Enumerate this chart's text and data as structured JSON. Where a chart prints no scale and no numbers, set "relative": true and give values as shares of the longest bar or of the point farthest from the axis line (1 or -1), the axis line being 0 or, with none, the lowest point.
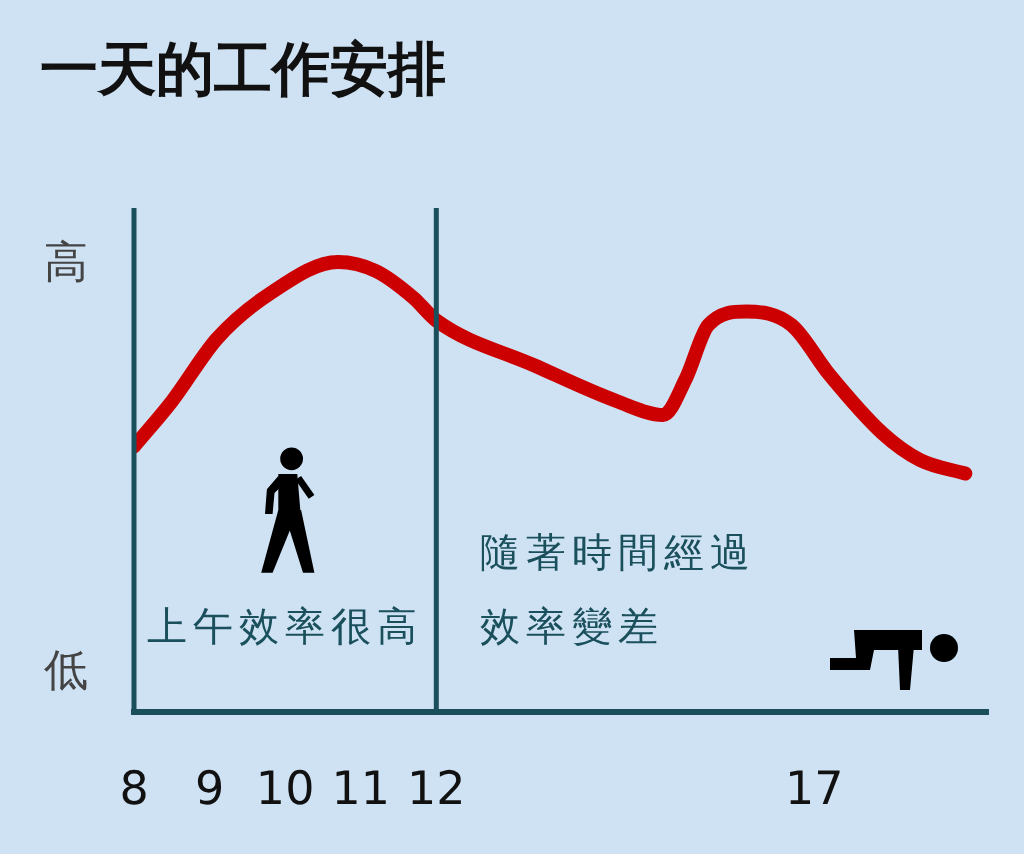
{
  "chart_data": {
    "type": "line",
    "title": "一天的工作安排",
    "x": [
      8,
      8.5,
      9.1,
      9.8,
      10.7,
      11.2,
      11.7,
      12,
      13.3,
      14.4,
      15,
      15.3,
      15.6,
      16.1,
      16.7,
      17.2,
      17.9,
      18.4,
      19
    ],
    "values": [
      0.59,
      0.69,
      0.83,
      0.93,
      1,
      0.98,
      0.92,
      0.87,
      0.77,
      0.69,
      0.66,
      0.74,
      0.86,
      0.89,
      0.86,
      0.75,
      0.62,
      0.56,
      0.53
    ],
    "color": "#cc0000",
    "relative": true,
    "xlim": [
      8,
      19.3
    ],
    "xticks": [
      8,
      9,
      10,
      11,
      12,
      17
    ],
    "ref_lines": [
      {
        "axis": "x",
        "value": 8,
        "color": "#1a4f5c"
      },
      {
        "axis": "x",
        "value": 12,
        "color": "#1a4f5c"
      }
    ],
    "annotations": [
      "高",
      "低",
      "上午效率很高",
      "隨著時間經過",
      "效率變差"
    ]
  }
}
